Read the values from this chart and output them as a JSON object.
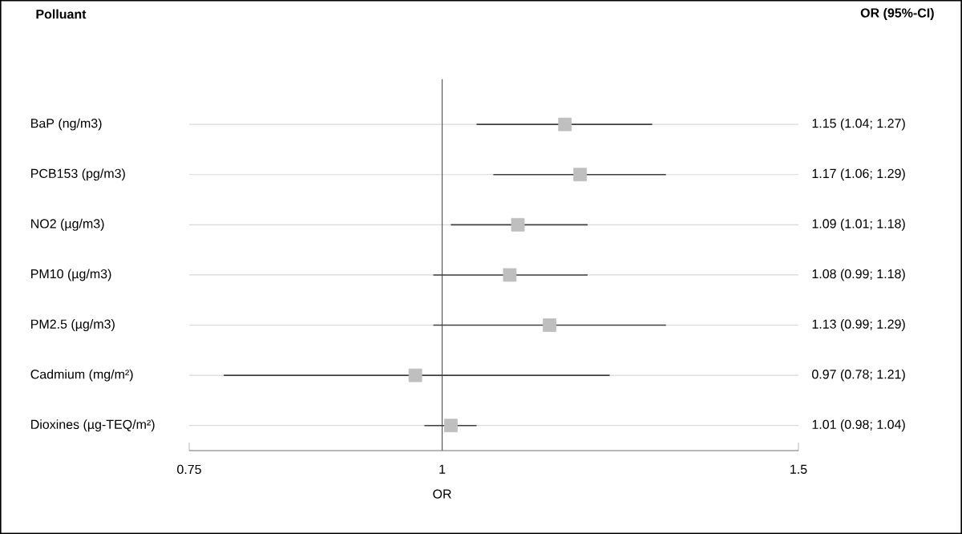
{
  "chart_data": {
    "type": "scatter",
    "orientation": "horizontal",
    "xlabel": "OR",
    "annotations": [
      "Polluant",
      "OR (95%-CI)"
    ],
    "categories": [
      "BaP (ng/m3)",
      "PCB153 (pg/m3)",
      "NO2 (µg/m3)",
      "PM10 (µg/m3)",
      "PM2.5 (µg/m3)",
      "Cadmium (mg/m²)",
      "Dioxines (µg-TEQ/m²)"
    ],
    "values": [
      1.15,
      1.17,
      1.09,
      1.08,
      1.13,
      0.97,
      1.01
    ],
    "errors": [
      [
        1.04,
        1.27
      ],
      [
        1.06,
        1.29
      ],
      [
        1.01,
        1.18
      ],
      [
        0.99,
        1.18
      ],
      [
        0.99,
        1.29
      ],
      [
        0.78,
        1.21
      ],
      [
        0.98,
        1.04
      ]
    ],
    "value_labels": [
      "1.15 (1.04; 1.27)",
      "1.17 (1.06; 1.29)",
      "1.09 (1.01; 1.18)",
      "1.08 (0.99; 1.18)",
      "1.13 (0.99; 1.29)",
      "0.97 (0.78; 1.21)",
      "1.01 (0.98; 1.04)"
    ],
    "color": "#bfbfbf",
    "marker": "square",
    "log": "x",
    "xlim": [
      0.75,
      1.5
    ],
    "xticks": [
      0.75,
      1,
      1.5
    ],
    "grid": "y",
    "ref_lines": [
      {
        "axis": "x",
        "value": 1,
        "color": "#595959"
      }
    ]
  }
}
